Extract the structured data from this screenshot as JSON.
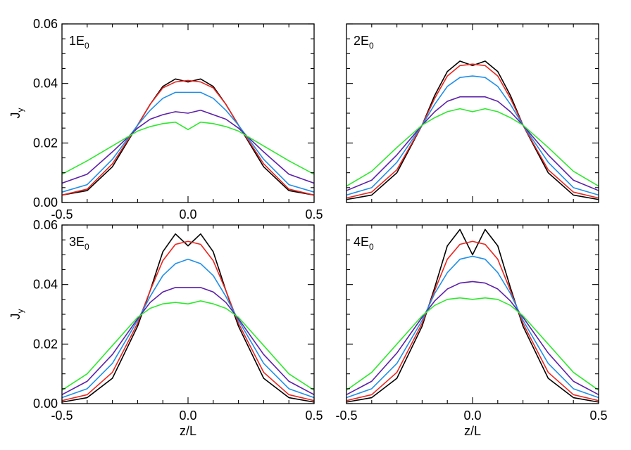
{
  "chart_data": [
    {
      "type": "line",
      "panel_label": "1E",
      "panel_label_sub": "0",
      "xlim": [
        -0.5,
        0.5
      ],
      "ylim": [
        0,
        0.06
      ],
      "xticks": [
        -0.5,
        0.0,
        0.5
      ],
      "yticks": [
        0.0,
        0.02,
        0.04,
        0.06
      ],
      "xtick_labels": [
        "-0.5",
        "0.0",
        "0.5"
      ],
      "ytick_labels": [
        "0.00",
        "0.02",
        "0.04",
        "0.06"
      ],
      "xlabel": "",
      "ylabel": "J",
      "ylabel_sub": "y",
      "grid": false,
      "series": [
        {
          "color": "#000000",
          "x": [
            -0.5,
            -0.4,
            -0.3,
            -0.2,
            -0.15,
            -0.1,
            -0.05,
            0,
            0.05,
            0.1,
            0.15,
            0.2,
            0.3,
            0.4,
            0.5
          ],
          "y": [
            0.0025,
            0.004,
            0.012,
            0.026,
            0.033,
            0.039,
            0.0415,
            0.0405,
            0.0415,
            0.039,
            0.033,
            0.026,
            0.012,
            0.004,
            0.0025
          ]
        },
        {
          "color": "#e8261f",
          "x": [
            -0.5,
            -0.4,
            -0.3,
            -0.2,
            -0.15,
            -0.1,
            -0.05,
            0,
            0.05,
            0.1,
            0.15,
            0.2,
            0.3,
            0.4,
            0.5
          ],
          "y": [
            0.0025,
            0.0045,
            0.013,
            0.026,
            0.033,
            0.0385,
            0.0405,
            0.041,
            0.0405,
            0.0385,
            0.033,
            0.026,
            0.013,
            0.0045,
            0.0025
          ]
        },
        {
          "color": "#1f8fe8",
          "x": [
            -0.5,
            -0.4,
            -0.3,
            -0.2,
            -0.15,
            -0.1,
            -0.05,
            0,
            0.05,
            0.1,
            0.15,
            0.2,
            0.3,
            0.4,
            0.5
          ],
          "y": [
            0.0035,
            0.006,
            0.0145,
            0.026,
            0.031,
            0.035,
            0.037,
            0.037,
            0.037,
            0.035,
            0.031,
            0.026,
            0.0145,
            0.006,
            0.0035
          ]
        },
        {
          "color": "#5c1fa8",
          "x": [
            -0.5,
            -0.4,
            -0.3,
            -0.2,
            -0.15,
            -0.1,
            -0.05,
            0,
            0.05,
            0.1,
            0.15,
            0.2,
            0.3,
            0.4,
            0.5
          ],
          "y": [
            0.0065,
            0.0095,
            0.017,
            0.025,
            0.028,
            0.0295,
            0.0305,
            0.03,
            0.031,
            0.0295,
            0.028,
            0.025,
            0.017,
            0.0095,
            0.0065
          ]
        },
        {
          "color": "#2ee82e",
          "x": [
            -0.5,
            -0.4,
            -0.3,
            -0.2,
            -0.15,
            -0.1,
            -0.05,
            0,
            0.05,
            0.1,
            0.15,
            0.2,
            0.3,
            0.4,
            0.5
          ],
          "y": [
            0.0095,
            0.014,
            0.019,
            0.024,
            0.0255,
            0.0265,
            0.027,
            0.0245,
            0.027,
            0.0265,
            0.0255,
            0.024,
            0.019,
            0.014,
            0.0095
          ]
        }
      ]
    },
    {
      "type": "line",
      "panel_label": "2E",
      "panel_label_sub": "0",
      "xlim": [
        -0.5,
        0.5
      ],
      "ylim": [
        0,
        0.06
      ],
      "xticks": [
        -0.5,
        0.0,
        0.5
      ],
      "yticks": [
        0.0,
        0.02,
        0.04,
        0.06
      ],
      "xtick_labels": [
        "",
        "",
        ""
      ],
      "ytick_labels": [
        "",
        "",
        "",
        ""
      ],
      "xlabel": "",
      "ylabel": "",
      "grid": false,
      "series": [
        {
          "color": "#000000",
          "x": [
            -0.5,
            -0.4,
            -0.3,
            -0.2,
            -0.15,
            -0.1,
            -0.05,
            0,
            0.05,
            0.1,
            0.15,
            0.2,
            0.3,
            0.4,
            0.5
          ],
          "y": [
            0.001,
            0.0025,
            0.01,
            0.026,
            0.036,
            0.044,
            0.0475,
            0.046,
            0.0475,
            0.044,
            0.036,
            0.026,
            0.01,
            0.0025,
            0.001
          ]
        },
        {
          "color": "#e8261f",
          "x": [
            -0.5,
            -0.4,
            -0.3,
            -0.2,
            -0.15,
            -0.1,
            -0.05,
            0,
            0.05,
            0.1,
            0.15,
            0.2,
            0.3,
            0.4,
            0.5
          ],
          "y": [
            0.0015,
            0.0035,
            0.011,
            0.026,
            0.035,
            0.0425,
            0.046,
            0.0465,
            0.046,
            0.0425,
            0.035,
            0.026,
            0.011,
            0.0035,
            0.0015
          ]
        },
        {
          "color": "#1f8fe8",
          "x": [
            -0.5,
            -0.4,
            -0.3,
            -0.2,
            -0.15,
            -0.1,
            -0.05,
            0,
            0.05,
            0.1,
            0.15,
            0.2,
            0.3,
            0.4,
            0.5
          ],
          "y": [
            0.0025,
            0.005,
            0.0135,
            0.026,
            0.033,
            0.039,
            0.042,
            0.0425,
            0.042,
            0.039,
            0.033,
            0.026,
            0.0135,
            0.005,
            0.0025
          ]
        },
        {
          "color": "#5c1fa8",
          "x": [
            -0.5,
            -0.4,
            -0.3,
            -0.2,
            -0.15,
            -0.1,
            -0.05,
            0,
            0.05,
            0.1,
            0.15,
            0.2,
            0.3,
            0.4,
            0.5
          ],
          "y": [
            0.004,
            0.0075,
            0.016,
            0.026,
            0.0305,
            0.034,
            0.0355,
            0.0355,
            0.0355,
            0.034,
            0.0305,
            0.026,
            0.016,
            0.0075,
            0.004
          ]
        },
        {
          "color": "#2ee82e",
          "x": [
            -0.5,
            -0.4,
            -0.3,
            -0.2,
            -0.15,
            -0.1,
            -0.05,
            0,
            0.05,
            0.1,
            0.15,
            0.2,
            0.3,
            0.4,
            0.5
          ],
          "y": [
            0.0055,
            0.0105,
            0.0185,
            0.026,
            0.0285,
            0.0305,
            0.0315,
            0.0305,
            0.0315,
            0.0305,
            0.0285,
            0.026,
            0.0185,
            0.0105,
            0.0055
          ]
        }
      ]
    },
    {
      "type": "line",
      "panel_label": "3E",
      "panel_label_sub": "0",
      "xlim": [
        -0.5,
        0.5
      ],
      "ylim": [
        0,
        0.06
      ],
      "xticks": [
        -0.5,
        0.0,
        0.5
      ],
      "yticks": [
        0.0,
        0.02,
        0.04,
        0.06
      ],
      "xtick_labels": [
        "-0.5",
        "0.0",
        "0.5"
      ],
      "ytick_labels": [
        "0.00",
        "0.02",
        "0.04",
        "0.06"
      ],
      "xlabel": "z/L",
      "ylabel": "J",
      "ylabel_sub": "y",
      "grid": false,
      "series": [
        {
          "color": "#000000",
          "x": [
            -0.5,
            -0.4,
            -0.3,
            -0.2,
            -0.15,
            -0.1,
            -0.05,
            0,
            0.05,
            0.1,
            0.15,
            0.2,
            0.3,
            0.4,
            0.5
          ],
          "y": [
            0.0005,
            0.002,
            0.0085,
            0.026,
            0.038,
            0.051,
            0.057,
            0.053,
            0.057,
            0.051,
            0.038,
            0.026,
            0.0085,
            0.002,
            0.0005
          ]
        },
        {
          "color": "#e8261f",
          "x": [
            -0.5,
            -0.4,
            -0.3,
            -0.2,
            -0.15,
            -0.1,
            -0.05,
            0,
            0.05,
            0.1,
            0.15,
            0.2,
            0.3,
            0.4,
            0.5
          ],
          "y": [
            0.001,
            0.003,
            0.0105,
            0.027,
            0.038,
            0.048,
            0.0535,
            0.0545,
            0.0535,
            0.048,
            0.038,
            0.027,
            0.0105,
            0.003,
            0.001
          ]
        },
        {
          "color": "#1f8fe8",
          "x": [
            -0.5,
            -0.4,
            -0.3,
            -0.2,
            -0.15,
            -0.1,
            -0.05,
            0,
            0.05,
            0.1,
            0.15,
            0.2,
            0.3,
            0.4,
            0.5
          ],
          "y": [
            0.002,
            0.005,
            0.0135,
            0.028,
            0.036,
            0.043,
            0.047,
            0.0485,
            0.047,
            0.043,
            0.036,
            0.028,
            0.0135,
            0.005,
            0.002
          ]
        },
        {
          "color": "#5c1fa8",
          "x": [
            -0.5,
            -0.4,
            -0.3,
            -0.2,
            -0.15,
            -0.1,
            -0.05,
            0,
            0.05,
            0.1,
            0.15,
            0.2,
            0.3,
            0.4,
            0.5
          ],
          "y": [
            0.003,
            0.0075,
            0.0165,
            0.0285,
            0.034,
            0.0375,
            0.039,
            0.039,
            0.039,
            0.0375,
            0.034,
            0.0285,
            0.0165,
            0.0075,
            0.003
          ]
        },
        {
          "color": "#2ee82e",
          "x": [
            -0.5,
            -0.4,
            -0.3,
            -0.2,
            -0.15,
            -0.1,
            -0.05,
            0,
            0.05,
            0.1,
            0.15,
            0.2,
            0.3,
            0.4,
            0.5
          ],
          "y": [
            0.0045,
            0.01,
            0.0195,
            0.029,
            0.032,
            0.0335,
            0.034,
            0.0335,
            0.0345,
            0.0335,
            0.032,
            0.029,
            0.0195,
            0.01,
            0.0045
          ]
        }
      ]
    },
    {
      "type": "line",
      "panel_label": "4E",
      "panel_label_sub": "0",
      "xlim": [
        -0.5,
        0.5
      ],
      "ylim": [
        0,
        0.06
      ],
      "xticks": [
        -0.5,
        0.0,
        0.5
      ],
      "yticks": [
        0.0,
        0.02,
        0.04,
        0.06
      ],
      "xtick_labels": [
        "-0.5",
        "0.0",
        "0.5"
      ],
      "ytick_labels": [
        "",
        "",
        "",
        ""
      ],
      "xlabel": "z/L",
      "ylabel": "",
      "grid": false,
      "series": [
        {
          "color": "#000000",
          "x": [
            -0.5,
            -0.4,
            -0.3,
            -0.2,
            -0.15,
            -0.1,
            -0.05,
            0,
            0.05,
            0.1,
            0.15,
            0.2,
            0.3,
            0.4,
            0.5
          ],
          "y": [
            0.0005,
            0.002,
            0.0085,
            0.026,
            0.039,
            0.053,
            0.0585,
            0.05,
            0.0585,
            0.053,
            0.039,
            0.026,
            0.0085,
            0.002,
            0.0005
          ]
        },
        {
          "color": "#e8261f",
          "x": [
            -0.5,
            -0.4,
            -0.3,
            -0.2,
            -0.15,
            -0.1,
            -0.05,
            0,
            0.05,
            0.1,
            0.15,
            0.2,
            0.3,
            0.4,
            0.5
          ],
          "y": [
            0.001,
            0.003,
            0.0105,
            0.027,
            0.038,
            0.0485,
            0.0535,
            0.0545,
            0.0535,
            0.0485,
            0.038,
            0.027,
            0.0105,
            0.003,
            0.001
          ]
        },
        {
          "color": "#1f8fe8",
          "x": [
            -0.5,
            -0.4,
            -0.3,
            -0.2,
            -0.15,
            -0.1,
            -0.05,
            0,
            0.05,
            0.1,
            0.15,
            0.2,
            0.3,
            0.4,
            0.5
          ],
          "y": [
            0.002,
            0.005,
            0.0135,
            0.028,
            0.037,
            0.044,
            0.0485,
            0.0495,
            0.0485,
            0.044,
            0.037,
            0.028,
            0.0135,
            0.005,
            0.002
          ]
        },
        {
          "color": "#5c1fa8",
          "x": [
            -0.5,
            -0.4,
            -0.3,
            -0.2,
            -0.15,
            -0.1,
            -0.05,
            0,
            0.05,
            0.1,
            0.15,
            0.2,
            0.3,
            0.4,
            0.5
          ],
          "y": [
            0.003,
            0.0075,
            0.017,
            0.029,
            0.0345,
            0.0385,
            0.0405,
            0.041,
            0.0405,
            0.0385,
            0.0345,
            0.029,
            0.017,
            0.0075,
            0.003
          ]
        },
        {
          "color": "#2ee82e",
          "x": [
            -0.5,
            -0.4,
            -0.3,
            -0.2,
            -0.15,
            -0.1,
            -0.05,
            0,
            0.05,
            0.1,
            0.15,
            0.2,
            0.3,
            0.4,
            0.5
          ],
          "y": [
            0.0045,
            0.0105,
            0.02,
            0.0295,
            0.033,
            0.035,
            0.0355,
            0.035,
            0.0355,
            0.035,
            0.033,
            0.0295,
            0.02,
            0.0105,
            0.0045
          ]
        }
      ]
    }
  ]
}
